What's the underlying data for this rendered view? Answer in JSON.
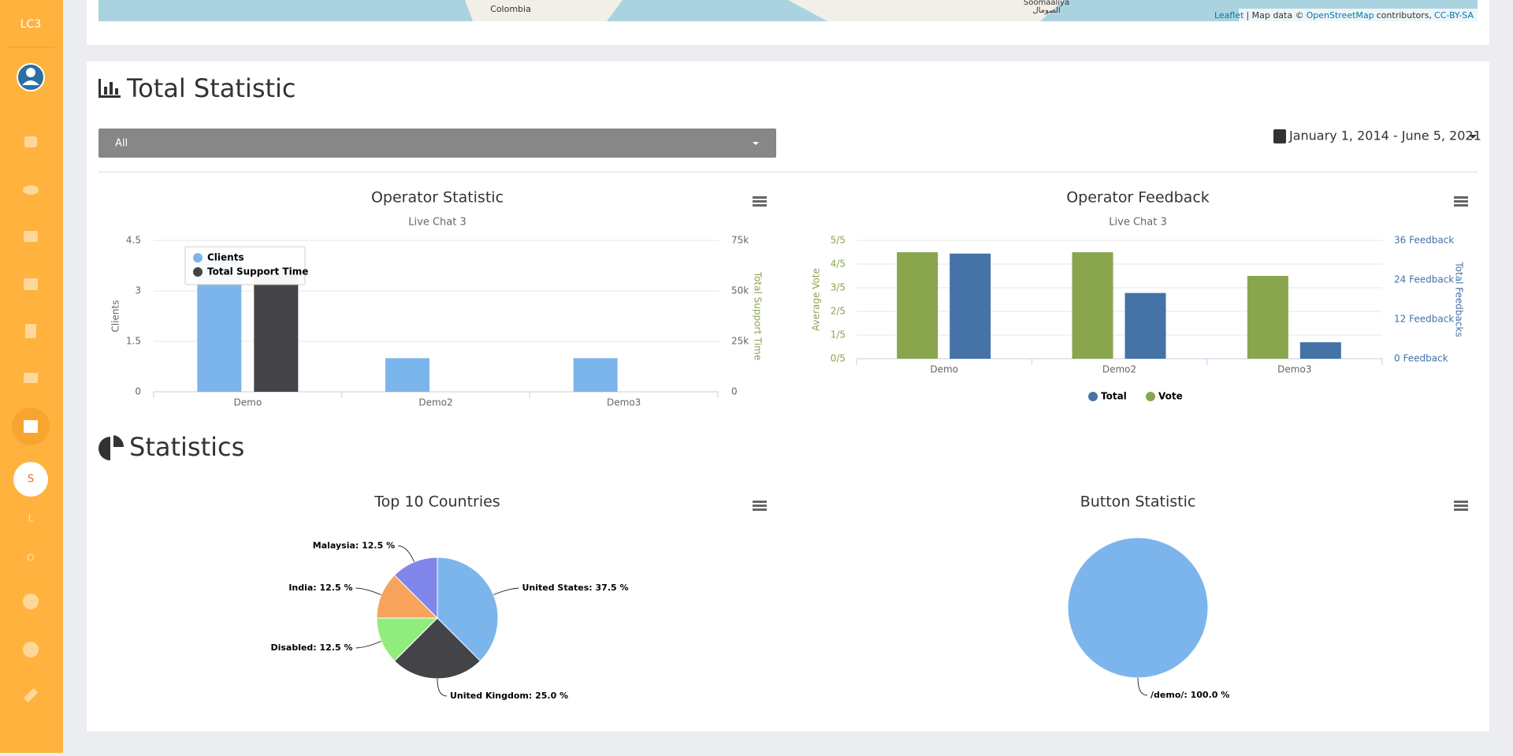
{
  "sidebar": {
    "brand": "LC3",
    "items": [
      "S",
      "L",
      "O"
    ]
  },
  "map": {
    "labels": [
      "Colombia",
      "Soomaaliya",
      "الصومال"
    ],
    "attribution": [
      "Leaflet",
      "| Map data ©",
      "OpenStreetMap",
      "contributors,",
      "CC-BY-SA"
    ]
  },
  "total_statistic": {
    "heading": "Total Statistic",
    "filter": "All",
    "date_range": "January 1, 2014 - June 5, 2021"
  },
  "statistics": {
    "heading": "Statistics"
  },
  "chart_data": [
    {
      "type": "bar",
      "title": "Operator Statistic",
      "subtitle": "Live Chat 3",
      "categories": [
        "Demo",
        "Demo2",
        "Demo3"
      ],
      "series": [
        {
          "name": "Clients",
          "color": "#7cb5ec",
          "values": [
            4,
            1,
            1
          ]
        },
        {
          "name": "Total Support Time",
          "color": "#434348",
          "axis": "y2",
          "values": [
            60000,
            0,
            0
          ]
        }
      ],
      "ylabel": "Clients",
      "y2label": "Total Support Time",
      "ylim": [
        0,
        4.5
      ],
      "yticks": [
        0,
        1.5,
        3,
        4.5
      ],
      "y2lim": [
        0,
        75000
      ],
      "y2ticks": [
        0,
        {
          "value": 25000,
          "label": "25k"
        },
        {
          "value": 50000,
          "label": "50k"
        },
        {
          "value": 75000,
          "label": "75k"
        }
      ],
      "grid": true,
      "legend": "upper-left"
    },
    {
      "type": "bar",
      "title": "Operator Feedback",
      "subtitle": "Live Chat 3",
      "categories": [
        "Demo",
        "Demo2",
        "Demo3"
      ],
      "series": [
        {
          "name": "Total",
          "color": "#4572a7",
          "axis": "y2",
          "values": [
            32,
            20,
            5
          ]
        },
        {
          "name": "Vote",
          "color": "#89a54e",
          "values": [
            4.5,
            4.5,
            3.5
          ]
        }
      ],
      "ylabel": "Average Vote",
      "y2label": "Total Feedbacks",
      "ylim": [
        0,
        5
      ],
      "yticks": [
        {
          "value": 0,
          "label": "0/5"
        },
        {
          "value": 1,
          "label": "1/5"
        },
        {
          "value": 2,
          "label": "2/5"
        },
        {
          "value": 3,
          "label": "3/5"
        },
        {
          "value": 4,
          "label": "4/5"
        },
        {
          "value": 5,
          "label": "5/5"
        }
      ],
      "y2lim": [
        0,
        36
      ],
      "y2ticks": [
        {
          "value": 0,
          "label": "0 Feedback"
        },
        {
          "value": 12,
          "label": "12 Feedback"
        },
        {
          "value": 24,
          "label": "24 Feedback"
        },
        {
          "value": 36,
          "label": "36 Feedback"
        }
      ],
      "grid": true,
      "legend": "bottom"
    },
    {
      "type": "pie",
      "title": "Top 10 Countries",
      "categories": [
        "United States",
        "United Kingdom",
        "Disabled",
        "India",
        "Malaysia"
      ],
      "values": [
        37.5,
        25.0,
        12.5,
        12.5,
        12.5
      ],
      "value_labels": [
        "United States: 37.5 %",
        "United Kingdom: 25.0 %",
        "Disabled: 12.5 %",
        "India: 12.5 %",
        "Malaysia: 12.5 %"
      ],
      "colors": [
        "#7cb5ec",
        "#434348",
        "#90ed7d",
        "#f7a35c",
        "#8085e9"
      ]
    },
    {
      "type": "pie",
      "title": "Button Statistic",
      "categories": [
        "/demo/"
      ],
      "values": [
        100.0
      ],
      "value_labels": [
        "/demo/: 100.0 %"
      ],
      "colors": [
        "#7cb5ec"
      ]
    }
  ]
}
